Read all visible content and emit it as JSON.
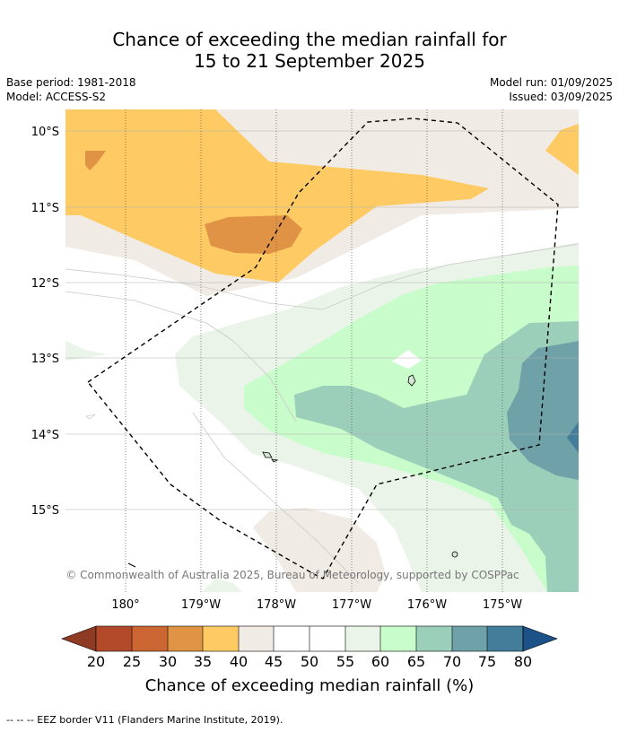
{
  "title": {
    "line1": "Chance of exceeding the median rainfall for",
    "line2": "15 to 21 September 2025"
  },
  "meta": {
    "base_period": "Base period: 1981-2018",
    "model": "Model: ACCESS-S2",
    "model_run": "Model run: 01/09/2025",
    "issued": "Issued: 03/09/2025"
  },
  "map": {
    "lat_labels": [
      "10°S",
      "11°S",
      "12°S",
      "13°S",
      "14°S",
      "15°S"
    ],
    "lon_labels": [
      "180°",
      "179°W",
      "178°W",
      "177°W",
      "176°W",
      "175°W"
    ],
    "copyright": "© Commonwealth of Australia 2025, Bureau of Meteorology, supported by COSPPac",
    "palette": {
      "20": "#b34a2a",
      "25": "#cc6633",
      "30": "#e09344",
      "35": "#fdca64",
      "40": "#f1ebe5",
      "45": "#ffffff",
      "50": "#ffffff",
      "55": "#eaf4e9",
      "60": "#c8fcca",
      "65": "#9ccfba",
      "70": "#6ea2a8",
      "75": "#437d99",
      "lt20": "#8f3b24",
      "gt80": "#1d5289"
    }
  },
  "colorbar": {
    "ticks": [
      "20",
      "25",
      "30",
      "35",
      "40",
      "45",
      "50",
      "55",
      "60",
      "65",
      "70",
      "75",
      "80"
    ],
    "label": "Chance of exceeding median rainfall (%)"
  },
  "footnote": "--  --  -- EEZ border V11 (Flanders Marine Institute, 2019)."
}
